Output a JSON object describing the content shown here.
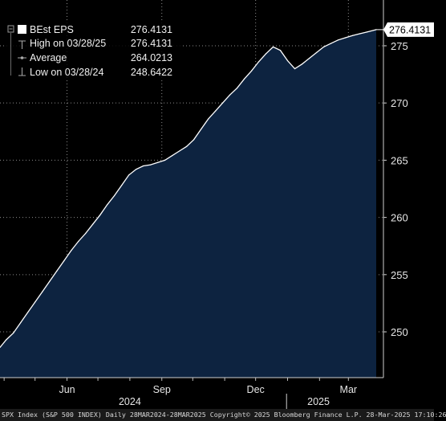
{
  "footer": {
    "text": "SPX Index (S&P 500 INDEX) Daily 28MAR2024-28MAR2025 Copyright© 2025 Bloomberg Finance L.P. 28-Mar-2025 17:10:26"
  },
  "legend": {
    "rows": [
      {
        "label": "BEst EPS",
        "value": "276.4131"
      },
      {
        "label": "High on 03/28/25",
        "value": "276.4131"
      },
      {
        "label": "Average",
        "value": "264.0213"
      },
      {
        "label": "Low on 03/28/24",
        "value": "248.6422"
      }
    ]
  },
  "last_value_tag": "276.4131",
  "chart_data": {
    "type": "area",
    "title": "",
    "xlabel": "",
    "ylabel": "",
    "series": [
      {
        "name": "BEst EPS",
        "color": "#ffffff",
        "fill": "#0d2340",
        "x": [
          "2024-03-28",
          "2024-04-03",
          "2024-04-10",
          "2024-04-17",
          "2024-04-24",
          "2024-05-01",
          "2024-05-08",
          "2024-05-15",
          "2024-05-22",
          "2024-05-29",
          "2024-06-05",
          "2024-06-12",
          "2024-06-19",
          "2024-06-26",
          "2024-07-03",
          "2024-07-10",
          "2024-07-17",
          "2024-07-24",
          "2024-07-31",
          "2024-08-07",
          "2024-08-14",
          "2024-08-21",
          "2024-08-28",
          "2024-09-04",
          "2024-09-11",
          "2024-09-18",
          "2024-09-25",
          "2024-10-02",
          "2024-10-09",
          "2024-10-16",
          "2024-10-23",
          "2024-10-30",
          "2024-11-06",
          "2024-11-13",
          "2024-11-20",
          "2024-11-27",
          "2024-12-04",
          "2024-12-11",
          "2024-12-18",
          "2024-12-25",
          "2025-01-01",
          "2025-01-08",
          "2025-01-15",
          "2025-01-22",
          "2025-01-29",
          "2025-02-05",
          "2025-02-12",
          "2025-02-19",
          "2025-02-26",
          "2025-03-05",
          "2025-03-12",
          "2025-03-19",
          "2025-03-28"
        ],
        "values": [
          248.64,
          249.3,
          249.9,
          250.8,
          251.7,
          252.6,
          253.5,
          254.4,
          255.3,
          256.2,
          257.1,
          257.9,
          258.6,
          259.4,
          260.2,
          261.1,
          261.9,
          262.8,
          263.7,
          264.2,
          264.5,
          264.6,
          264.8,
          265.0,
          265.4,
          265.8,
          266.2,
          266.8,
          267.7,
          268.6,
          269.3,
          270.0,
          270.7,
          271.3,
          272.1,
          272.8,
          273.6,
          274.3,
          274.9,
          274.6,
          273.7,
          273.0,
          273.4,
          273.9,
          274.4,
          274.9,
          275.2,
          275.5,
          275.7,
          275.9,
          276.05,
          276.2,
          276.41
        ]
      }
    ],
    "x_ticks": [
      {
        "label": "Jun",
        "date": "2024-06-01"
      },
      {
        "label": "Sep",
        "date": "2024-09-01"
      },
      {
        "label": "Dec",
        "date": "2024-12-01"
      },
      {
        "label": "Mar",
        "date": "2025-03-01"
      }
    ],
    "year_labels": [
      {
        "label": "2024",
        "date": "2024-08-01"
      },
      {
        "label": "2025",
        "date": "2025-01-31"
      }
    ],
    "year_divider_date": "2024-12-31",
    "y_ticks": [
      250,
      255,
      260,
      265,
      270,
      275
    ],
    "ylim": [
      246,
      279
    ],
    "xlim": [
      "2024-03-28",
      "2025-04-04"
    ],
    "grid": true,
    "legend_position": "top-left"
  }
}
